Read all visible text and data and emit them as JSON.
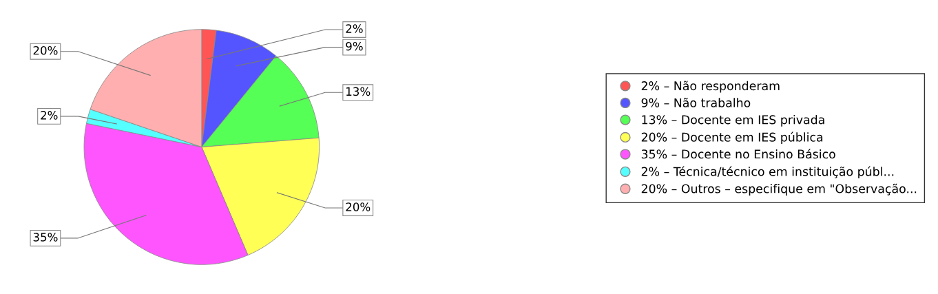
{
  "chart_data": {
    "type": "pie",
    "categories": [
      "2% – Não responderam",
      "9% – Não trabalho",
      "13% – Docente em IES privada",
      "20% – Docente em IES pública",
      "35% – Docente no Ensino Básico",
      "2% – Técnica/técnico em instituição públ...",
      "20% – Outros – especifique em \"Observação..."
    ],
    "values": [
      2,
      9,
      13,
      20,
      35,
      2,
      20
    ],
    "value_labels": [
      "2%",
      "9%",
      "13%",
      "20%",
      "35%",
      "2%",
      "20%"
    ],
    "colors": [
      "#ff5555",
      "#5555ff",
      "#55ff55",
      "#ffff55",
      "#ff55ff",
      "#55ffff",
      "#ffafaf"
    ],
    "legend": "right"
  }
}
